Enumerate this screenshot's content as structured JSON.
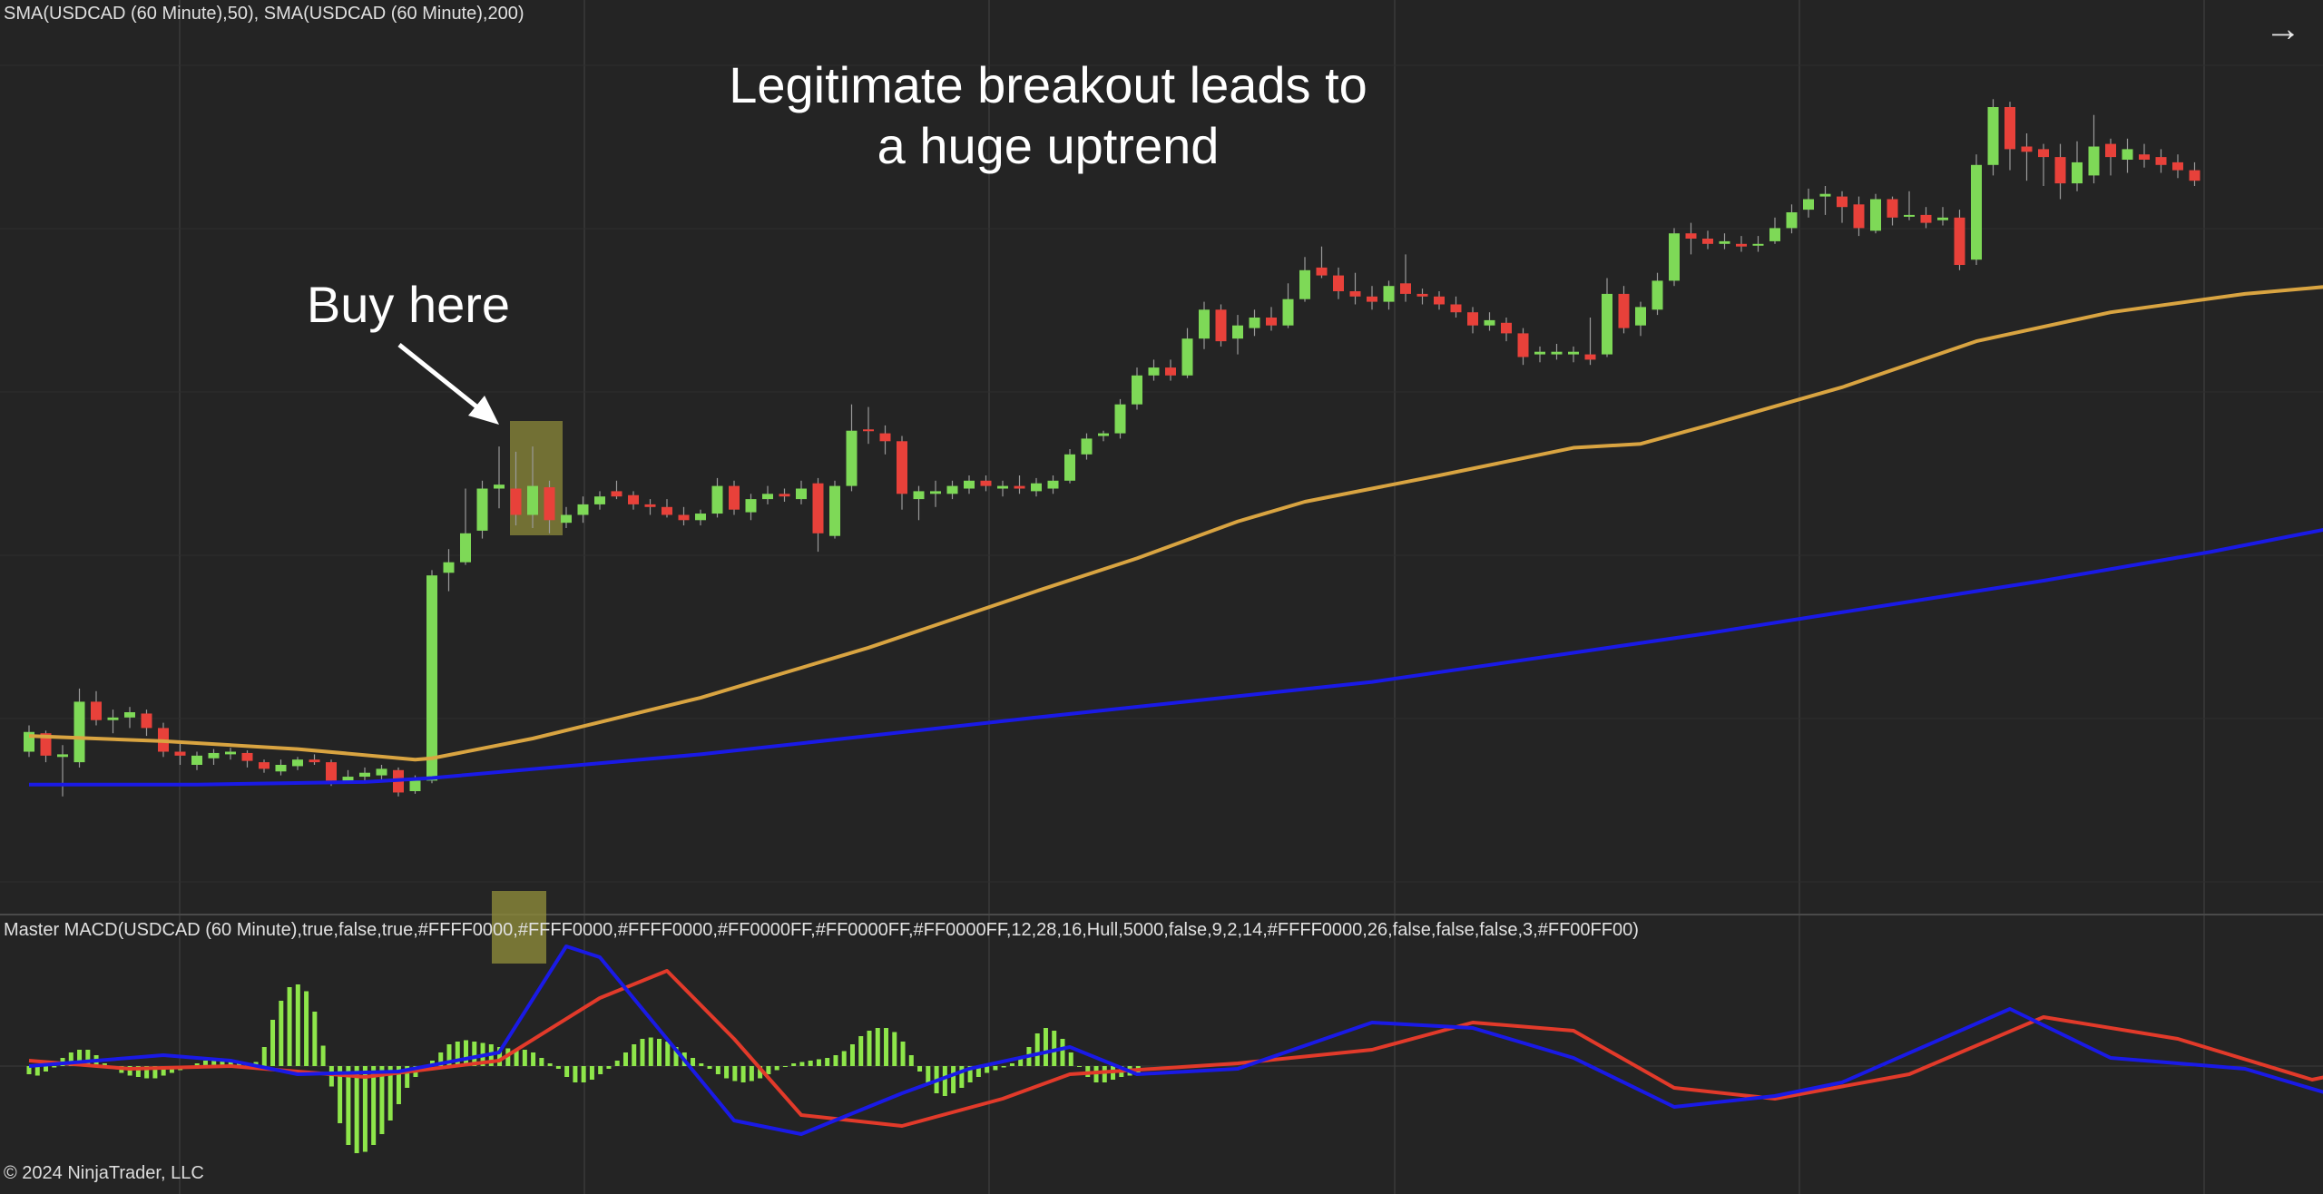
{
  "price_panel": {
    "header": "SMA(USDCAD (60 Minute),50), SMA(USDCAD (60 Minute),200)",
    "annotation_main": [
      "Legitimate breakout leads to",
      "a huge uptrend"
    ],
    "annotation_buy": "Buy here"
  },
  "macd_panel": {
    "header": "Master MACD(USDCAD (60 Minute),true,false,true,#FFFF0000,#FFFF0000,#FFFF0000,#FF0000FF,#FF0000FF,#FF0000FF,12,28,16,Hull,5000,false,9,2,14,#FFFF0000,26,false,false,false,3,#FF00FF00)"
  },
  "footer": {
    "copyright": "© 2024 NinjaTrader, LLC"
  },
  "nav": {
    "arrow_icon": "arrow-right-icon"
  },
  "colors": {
    "background": "#242424",
    "grid": "#383838",
    "candle_up": "#7ed957",
    "candle_down": "#e8413a",
    "sma50": "#d9a441",
    "sma200": "#1a1ae6",
    "macd_line": "#1a1ae6",
    "signal_line": "#e23a2a",
    "histogram": "#8ee64a",
    "highlight": "#8c8a3a"
  },
  "chart_data": [
    {
      "type": "candlestick",
      "name": "USDCAD (60 Minute)",
      "ylim": [
        0,
        600
      ],
      "candles": [
        {
          "o": 70,
          "c": 85,
          "h": 90,
          "l": 66
        },
        {
          "o": 84,
          "c": 67,
          "h": 86,
          "l": 62
        },
        {
          "o": 66,
          "c": 68,
          "h": 75,
          "l": 36
        },
        {
          "o": 62,
          "c": 108,
          "h": 118,
          "l": 58
        },
        {
          "o": 108,
          "c": 94,
          "h": 116,
          "l": 90
        },
        {
          "o": 94,
          "c": 96,
          "h": 102,
          "l": 84
        },
        {
          "o": 96,
          "c": 100,
          "h": 104,
          "l": 88
        },
        {
          "o": 99,
          "c": 88,
          "h": 102,
          "l": 82
        },
        {
          "o": 88,
          "c": 70,
          "h": 92,
          "l": 66
        },
        {
          "o": 70,
          "c": 67,
          "h": 76,
          "l": 60
        },
        {
          "o": 60,
          "c": 67,
          "h": 70,
          "l": 56
        },
        {
          "o": 65,
          "c": 69,
          "h": 72,
          "l": 60
        },
        {
          "o": 68,
          "c": 70,
          "h": 73,
          "l": 64
        },
        {
          "o": 69,
          "c": 63,
          "h": 71,
          "l": 58
        },
        {
          "o": 62,
          "c": 57,
          "h": 64,
          "l": 54
        },
        {
          "o": 55,
          "c": 60,
          "h": 64,
          "l": 52
        },
        {
          "o": 59,
          "c": 64,
          "h": 66,
          "l": 56
        },
        {
          "o": 64,
          "c": 62,
          "h": 68,
          "l": 60
        },
        {
          "o": 62,
          "c": 48,
          "h": 64,
          "l": 44
        },
        {
          "o": 48,
          "c": 51,
          "h": 56,
          "l": 46
        },
        {
          "o": 51,
          "c": 54,
          "h": 58,
          "l": 48
        },
        {
          "o": 52,
          "c": 57,
          "h": 60,
          "l": 48
        },
        {
          "o": 56,
          "c": 39,
          "h": 58,
          "l": 36
        },
        {
          "o": 40,
          "c": 48,
          "h": 52,
          "l": 38
        },
        {
          "o": 48,
          "c": 204,
          "h": 208,
          "l": 46
        },
        {
          "o": 206,
          "c": 214,
          "h": 224,
          "l": 192
        },
        {
          "o": 214,
          "c": 236,
          "h": 270,
          "l": 212
        },
        {
          "o": 238,
          "c": 270,
          "h": 276,
          "l": 232
        },
        {
          "o": 270,
          "c": 273,
          "h": 302,
          "l": 255
        },
        {
          "o": 270,
          "c": 250,
          "h": 298,
          "l": 242
        },
        {
          "o": 250,
          "c": 272,
          "h": 302,
          "l": 240
        },
        {
          "o": 271,
          "c": 246,
          "h": 276,
          "l": 236
        },
        {
          "o": 244,
          "c": 250,
          "h": 256,
          "l": 240
        },
        {
          "o": 250,
          "c": 258,
          "h": 264,
          "l": 244
        },
        {
          "o": 258,
          "c": 264,
          "h": 268,
          "l": 254
        },
        {
          "o": 268,
          "c": 264,
          "h": 276,
          "l": 262
        },
        {
          "o": 265,
          "c": 258,
          "h": 268,
          "l": 254
        },
        {
          "o": 258,
          "c": 256,
          "h": 262,
          "l": 250
        },
        {
          "o": 256,
          "c": 250,
          "h": 262,
          "l": 248
        },
        {
          "o": 250,
          "c": 246,
          "h": 256,
          "l": 242
        },
        {
          "o": 246,
          "c": 251,
          "h": 254,
          "l": 242
        },
        {
          "o": 251,
          "c": 272,
          "h": 278,
          "l": 248
        },
        {
          "o": 272,
          "c": 254,
          "h": 276,
          "l": 250
        },
        {
          "o": 252,
          "c": 262,
          "h": 266,
          "l": 246
        },
        {
          "o": 262,
          "c": 266,
          "h": 272,
          "l": 258
        },
        {
          "o": 266,
          "c": 264,
          "h": 270,
          "l": 260
        },
        {
          "o": 262,
          "c": 270,
          "h": 276,
          "l": 258
        },
        {
          "o": 274,
          "c": 236,
          "h": 278,
          "l": 222
        },
        {
          "o": 234,
          "c": 272,
          "h": 276,
          "l": 232
        },
        {
          "o": 272,
          "c": 314,
          "h": 334,
          "l": 268
        },
        {
          "o": 315,
          "c": 314,
          "h": 332,
          "l": 304
        },
        {
          "o": 312,
          "c": 306,
          "h": 318,
          "l": 296
        },
        {
          "o": 306,
          "c": 266,
          "h": 310,
          "l": 254
        },
        {
          "o": 262,
          "c": 268,
          "h": 272,
          "l": 246
        },
        {
          "o": 266,
          "c": 268,
          "h": 276,
          "l": 256
        },
        {
          "o": 266,
          "c": 272,
          "h": 276,
          "l": 262
        },
        {
          "o": 270,
          "c": 276,
          "h": 280,
          "l": 266
        },
        {
          "o": 276,
          "c": 272,
          "h": 280,
          "l": 268
        },
        {
          "o": 270,
          "c": 272,
          "h": 276,
          "l": 264
        },
        {
          "o": 272,
          "c": 270,
          "h": 280,
          "l": 266
        },
        {
          "o": 268,
          "c": 274,
          "h": 278,
          "l": 264
        },
        {
          "o": 270,
          "c": 276,
          "h": 280,
          "l": 266
        },
        {
          "o": 276,
          "c": 296,
          "h": 300,
          "l": 274
        },
        {
          "o": 296,
          "c": 308,
          "h": 312,
          "l": 292
        },
        {
          "o": 310,
          "c": 312,
          "h": 314,
          "l": 306
        },
        {
          "o": 312,
          "c": 334,
          "h": 338,
          "l": 308
        },
        {
          "o": 334,
          "c": 356,
          "h": 362,
          "l": 330
        },
        {
          "o": 356,
          "c": 362,
          "h": 368,
          "l": 352
        },
        {
          "o": 362,
          "c": 356,
          "h": 368,
          "l": 352
        },
        {
          "o": 356,
          "c": 384,
          "h": 392,
          "l": 354
        },
        {
          "o": 384,
          "c": 406,
          "h": 412,
          "l": 376
        },
        {
          "o": 406,
          "c": 382,
          "h": 410,
          "l": 378
        },
        {
          "o": 384,
          "c": 394,
          "h": 402,
          "l": 372
        },
        {
          "o": 392,
          "c": 400,
          "h": 406,
          "l": 386
        },
        {
          "o": 400,
          "c": 394,
          "h": 408,
          "l": 390
        },
        {
          "o": 394,
          "c": 414,
          "h": 426,
          "l": 392
        },
        {
          "o": 414,
          "c": 436,
          "h": 446,
          "l": 412
        },
        {
          "o": 438,
          "c": 432,
          "h": 454,
          "l": 430
        },
        {
          "o": 432,
          "c": 420,
          "h": 438,
          "l": 414
        },
        {
          "o": 420,
          "c": 416,
          "h": 434,
          "l": 410
        },
        {
          "o": 416,
          "c": 412,
          "h": 424,
          "l": 406
        },
        {
          "o": 412,
          "c": 424,
          "h": 428,
          "l": 406
        },
        {
          "o": 426,
          "c": 418,
          "h": 448,
          "l": 412
        },
        {
          "o": 418,
          "c": 416,
          "h": 422,
          "l": 410
        },
        {
          "o": 416,
          "c": 410,
          "h": 420,
          "l": 406
        },
        {
          "o": 410,
          "c": 404,
          "h": 416,
          "l": 400
        },
        {
          "o": 404,
          "c": 394,
          "h": 408,
          "l": 388
        },
        {
          "o": 394,
          "c": 398,
          "h": 404,
          "l": 390
        },
        {
          "o": 396,
          "c": 388,
          "h": 400,
          "l": 382
        },
        {
          "o": 388,
          "c": 370,
          "h": 392,
          "l": 364
        },
        {
          "o": 372,
          "c": 374,
          "h": 378,
          "l": 366
        },
        {
          "o": 372,
          "c": 374,
          "h": 380,
          "l": 368
        },
        {
          "o": 372,
          "c": 374,
          "h": 378,
          "l": 366
        },
        {
          "o": 372,
          "c": 368,
          "h": 400,
          "l": 364
        },
        {
          "o": 372,
          "c": 418,
          "h": 430,
          "l": 370
        },
        {
          "o": 418,
          "c": 392,
          "h": 424,
          "l": 388
        },
        {
          "o": 394,
          "c": 408,
          "h": 412,
          "l": 386
        },
        {
          "o": 406,
          "c": 428,
          "h": 434,
          "l": 402
        },
        {
          "o": 428,
          "c": 464,
          "h": 468,
          "l": 424
        },
        {
          "o": 464,
          "c": 460,
          "h": 472,
          "l": 448
        },
        {
          "o": 460,
          "c": 456,
          "h": 466,
          "l": 452
        },
        {
          "o": 456,
          "c": 458,
          "h": 464,
          "l": 452
        },
        {
          "o": 456,
          "c": 454,
          "h": 462,
          "l": 450
        },
        {
          "o": 456,
          "c": 456,
          "h": 462,
          "l": 450
        },
        {
          "o": 458,
          "c": 468,
          "h": 476,
          "l": 456
        },
        {
          "o": 468,
          "c": 480,
          "h": 486,
          "l": 464
        },
        {
          "o": 482,
          "c": 490,
          "h": 498,
          "l": 476
        },
        {
          "o": 492,
          "c": 494,
          "h": 500,
          "l": 478
        },
        {
          "o": 492,
          "c": 484,
          "h": 496,
          "l": 472
        },
        {
          "o": 486,
          "c": 468,
          "h": 492,
          "l": 462
        },
        {
          "o": 466,
          "c": 490,
          "h": 494,
          "l": 464
        },
        {
          "o": 490,
          "c": 476,
          "h": 492,
          "l": 470
        },
        {
          "o": 478,
          "c": 478,
          "h": 496,
          "l": 474
        },
        {
          "o": 478,
          "c": 472,
          "h": 484,
          "l": 468
        },
        {
          "o": 474,
          "c": 476,
          "h": 484,
          "l": 470
        },
        {
          "o": 476,
          "c": 440,
          "h": 482,
          "l": 436
        },
        {
          "o": 444,
          "c": 516,
          "h": 524,
          "l": 440
        },
        {
          "o": 516,
          "c": 560,
          "h": 566,
          "l": 508
        },
        {
          "o": 560,
          "c": 528,
          "h": 564,
          "l": 512
        },
        {
          "o": 530,
          "c": 526,
          "h": 540,
          "l": 504
        },
        {
          "o": 528,
          "c": 522,
          "h": 532,
          "l": 500
        },
        {
          "o": 522,
          "c": 502,
          "h": 532,
          "l": 490
        },
        {
          "o": 502,
          "c": 518,
          "h": 534,
          "l": 496
        },
        {
          "o": 508,
          "c": 530,
          "h": 554,
          "l": 502
        },
        {
          "o": 532,
          "c": 522,
          "h": 536,
          "l": 508
        },
        {
          "o": 520,
          "c": 528,
          "h": 536,
          "l": 510
        },
        {
          "o": 524,
          "c": 520,
          "h": 532,
          "l": 514
        },
        {
          "o": 522,
          "c": 516,
          "h": 528,
          "l": 510
        },
        {
          "o": 518,
          "c": 512,
          "h": 524,
          "l": 506
        },
        {
          "o": 512,
          "c": 504,
          "h": 518,
          "l": 500
        }
      ],
      "sma50": [
        [
          0,
          82
        ],
        [
          8,
          78
        ],
        [
          16,
          72
        ],
        [
          23,
          64
        ],
        [
          24,
          65
        ],
        [
          30,
          80
        ],
        [
          40,
          111
        ],
        [
          50,
          149
        ],
        [
          60,
          192
        ],
        [
          66,
          217
        ],
        [
          72,
          245
        ],
        [
          76,
          260
        ],
        [
          84,
          280
        ],
        [
          92,
          301
        ],
        [
          96,
          304
        ],
        [
          100,
          318
        ],
        [
          108,
          347
        ],
        [
          116,
          382
        ],
        [
          124,
          404
        ],
        [
          132,
          418
        ],
        [
          140,
          427
        ]
      ],
      "sma200": [
        [
          0,
          45
        ],
        [
          10,
          45
        ],
        [
          20,
          47
        ],
        [
          24,
          50
        ],
        [
          40,
          68
        ],
        [
          60,
          96
        ],
        [
          80,
          123
        ],
        [
          100,
          160
        ],
        [
          120,
          200
        ],
        [
          130,
          222
        ],
        [
          140,
          247
        ]
      ]
    },
    {
      "type": "macd",
      "ylim": [
        -70,
        90
      ],
      "histogram": [
        -6,
        -7,
        -4,
        -1,
        6,
        10,
        12,
        12,
        8,
        2,
        -2,
        -5,
        -7,
        -8,
        -9,
        -9,
        -7,
        -5,
        -3,
        -1,
        2,
        4,
        5,
        5,
        4,
        3,
        2,
        3,
        14,
        34,
        48,
        58,
        60,
        55,
        40,
        15,
        -15,
        -42,
        -58,
        -64,
        -63,
        -58,
        -50,
        -40,
        -28,
        -16,
        -8,
        -2,
        4,
        10,
        16,
        18,
        19,
        18,
        17,
        16,
        14,
        13,
        12,
        12,
        10,
        6,
        2,
        -2,
        -8,
        -12,
        -12,
        -10,
        -6,
        -2,
        4,
        10,
        16,
        20,
        21,
        20,
        18,
        14,
        10,
        6,
        2,
        -2,
        -6,
        -9,
        -11,
        -12,
        -11,
        -9,
        -6,
        -3,
        0,
        2,
        3,
        4,
        5,
        6,
        8,
        11,
        16,
        22,
        26,
        28,
        28,
        25,
        18,
        8,
        -4,
        -14,
        -20,
        -22,
        -20,
        -16,
        -12,
        -8,
        -5,
        -3,
        -1,
        2,
        6,
        14,
        24,
        28,
        26,
        20,
        10,
        0,
        -8,
        -12,
        -12,
        -10,
        -8,
        -7,
        -6
      ],
      "macd_line": [
        [
          0,
          0
        ],
        [
          8,
          8
        ],
        [
          12,
          4
        ],
        [
          16,
          -6
        ],
        [
          22,
          -4
        ],
        [
          28,
          10
        ],
        [
          32,
          88
        ],
        [
          34,
          80
        ],
        [
          38,
          20
        ],
        [
          42,
          -40
        ],
        [
          46,
          -50
        ],
        [
          52,
          -20
        ],
        [
          56,
          -2
        ],
        [
          62,
          14
        ],
        [
          66,
          -6
        ],
        [
          72,
          -2
        ],
        [
          80,
          32
        ],
        [
          86,
          28
        ],
        [
          92,
          6
        ],
        [
          98,
          -30
        ],
        [
          104,
          -22
        ],
        [
          108,
          -12
        ],
        [
          118,
          42
        ],
        [
          124,
          6
        ],
        [
          132,
          -2
        ],
        [
          138,
          -24
        ],
        [
          144,
          12
        ],
        [
          146,
          14
        ],
        [
          150,
          0
        ],
        [
          152,
          -12
        ]
      ],
      "signal_line": [
        [
          0,
          4
        ],
        [
          6,
          -2
        ],
        [
          12,
          0
        ],
        [
          20,
          -8
        ],
        [
          28,
          4
        ],
        [
          34,
          50
        ],
        [
          38,
          70
        ],
        [
          42,
          20
        ],
        [
          46,
          -36
        ],
        [
          52,
          -44
        ],
        [
          58,
          -24
        ],
        [
          62,
          -6
        ],
        [
          72,
          2
        ],
        [
          80,
          12
        ],
        [
          86,
          32
        ],
        [
          92,
          26
        ],
        [
          98,
          -16
        ],
        [
          104,
          -24
        ],
        [
          112,
          -6
        ],
        [
          120,
          36
        ],
        [
          128,
          20
        ],
        [
          136,
          -10
        ],
        [
          144,
          10
        ],
        [
          150,
          4
        ],
        [
          152,
          -4
        ]
      ]
    }
  ]
}
